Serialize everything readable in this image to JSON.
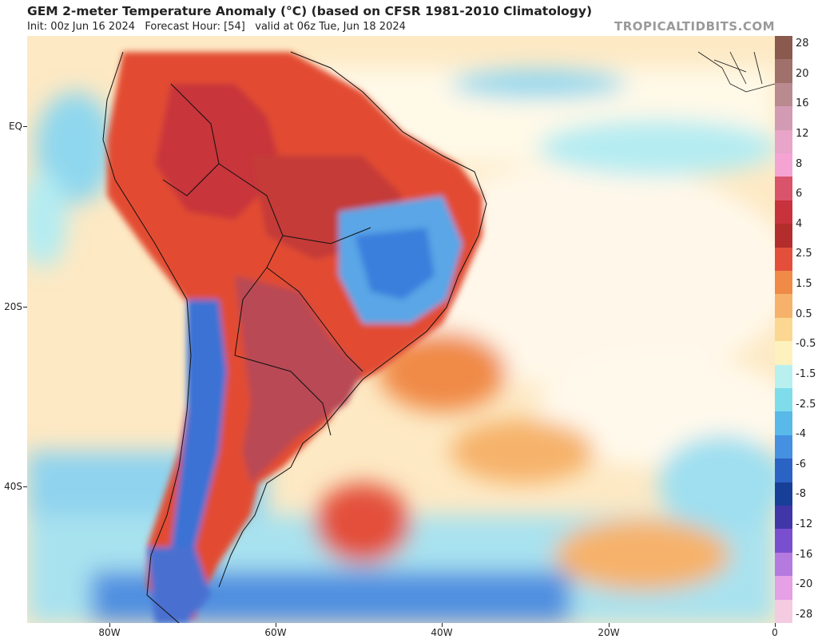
{
  "header": {
    "title": "GEM 2-meter Temperature Anomaly (°C) (based on CFSR 1981-2010 Climatology)",
    "init": "Init: 00z Jun 16 2024",
    "forecast_hour": "Forecast Hour: [54]",
    "valid": "valid at 06z Tue, Jun 18 2024",
    "brand": "TROPICALTIDBITS.COM"
  },
  "map": {
    "lat_labels": [
      "EQ",
      "20S",
      "40S"
    ],
    "lon_labels": [
      "80W",
      "60W",
      "40W",
      "20W",
      "0"
    ]
  },
  "colorbar": {
    "labels": [
      "28",
      "20",
      "16",
      "12",
      "8",
      "6",
      "4",
      "2.5",
      "1.5",
      "0.5",
      "-0.5",
      "-1.5",
      "-2.5",
      "-4",
      "-6",
      "-8",
      "-12",
      "-16",
      "-20",
      "-28"
    ],
    "colors": [
      "#8b5a4e",
      "#a0706b",
      "#b98a8f",
      "#d29bb3",
      "#e8a4c9",
      "#f5a3d3",
      "#d9536b",
      "#c8323c",
      "#b22d2b",
      "#e34f3a",
      "#f08a47",
      "#f6b26b",
      "#fbd791",
      "#fdf1bd",
      "#b8f0f0",
      "#7fdcea",
      "#59b9e8",
      "#4590e0",
      "#2b63c4",
      "#173f97",
      "#4136a8",
      "#7a4fcf",
      "#b57ae0",
      "#e5a0e6",
      "#f4cbe0"
    ]
  }
}
